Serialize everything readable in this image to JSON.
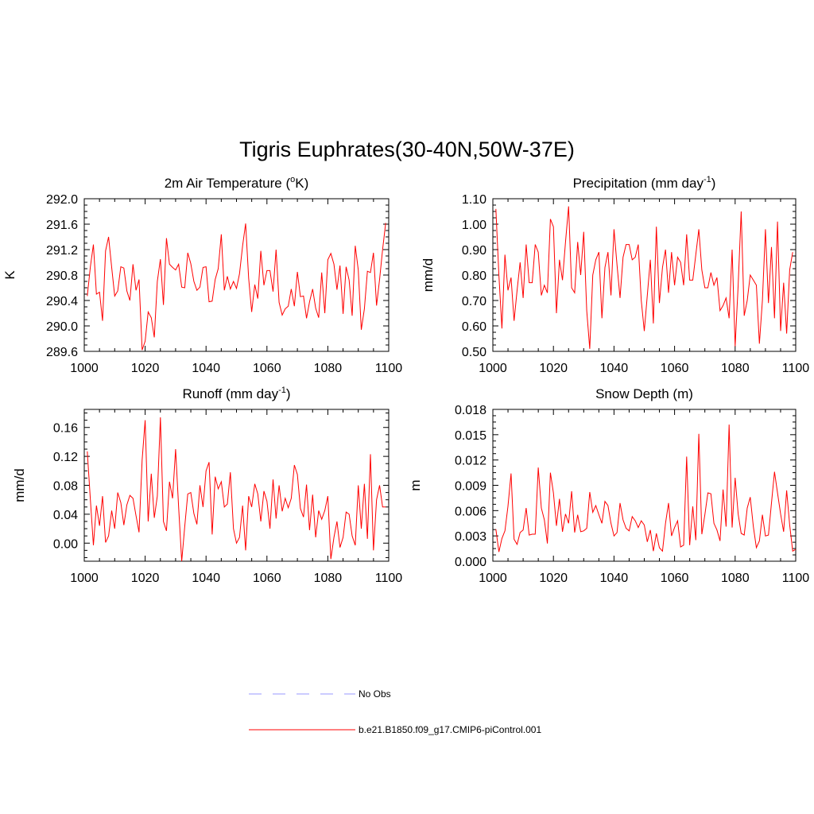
{
  "figure": {
    "title": "Tigris Euphrates(30-40N,50W-37E)"
  },
  "legend": [
    {
      "label": "No Obs",
      "color": "#9999ff",
      "dash": true
    },
    {
      "label": "b.e21.B1850.f09_g17.CMIP6-piControl.001",
      "color": "#ff0000",
      "dash": false
    }
  ],
  "chart_data": [
    {
      "type": "line",
      "title_main": "2m Air Temperature (",
      "title_sup": "o",
      "title_after": "K)",
      "title_sup_position": "before",
      "ylabel": "K",
      "xlim": [
        1000,
        1100
      ],
      "ylim": [
        289.6,
        292.0
      ],
      "xticks": [
        "1000",
        "1020",
        "1040",
        "1060",
        "1080",
        "1100"
      ],
      "yticks": [
        "292.0",
        "291.6",
        "291.2",
        "290.8",
        "290.4",
        "290.0",
        "289.6"
      ],
      "series": [
        {
          "name": "b.e21.B1850.f09_g17.CMIP6-piControl.001",
          "color": "#ff0000",
          "x_start": 1001,
          "values": [
            290.47,
            290.93,
            291.28,
            290.5,
            290.53,
            290.08,
            291.18,
            291.4,
            290.92,
            290.47,
            290.55,
            290.93,
            290.91,
            290.55,
            290.4,
            290.97,
            290.56,
            290.73,
            289.62,
            289.76,
            290.22,
            290.13,
            289.82,
            290.7,
            291.05,
            290.33,
            291.38,
            290.97,
            290.92,
            290.88,
            290.97,
            290.61,
            290.6,
            291.15,
            290.98,
            290.7,
            290.56,
            290.61,
            290.92,
            290.93,
            290.38,
            290.39,
            290.73,
            290.9,
            291.44,
            290.56,
            290.78,
            290.58,
            290.7,
            290.59,
            290.82,
            291.26,
            291.61,
            290.75,
            290.22,
            290.65,
            290.43,
            291.18,
            290.64,
            290.87,
            290.87,
            290.54,
            291.2,
            290.37,
            290.17,
            290.27,
            290.31,
            290.58,
            290.31,
            290.85,
            290.46,
            290.47,
            290.12,
            290.38,
            290.58,
            290.28,
            290.13,
            290.84,
            290.2,
            291.04,
            291.14,
            290.97,
            290.57,
            290.95,
            290.19,
            290.93,
            290.72,
            290.16,
            291.26,
            290.88,
            289.94,
            290.27,
            290.86,
            290.84,
            291.15,
            290.32,
            290.73,
            291.2,
            291.62
          ]
        }
      ]
    },
    {
      "type": "line",
      "title_main": "Precipitation (mm day",
      "title_sup": "-1",
      "title_after": ")",
      "title_sup_position": "after",
      "ylabel": "mm/d",
      "xlim": [
        1000,
        1100
      ],
      "ylim": [
        0.5,
        1.1
      ],
      "xticks": [
        "1000",
        "1020",
        "1040",
        "1060",
        "1080",
        "1100"
      ],
      "yticks": [
        "1.10",
        "1.00",
        "0.90",
        "0.80",
        "0.70",
        "0.60",
        "0.50"
      ],
      "series": [
        {
          "name": "b.e21.B1850.f09_g17.CMIP6-piControl.001",
          "color": "#ff0000",
          "x_start": 1001,
          "values": [
            1.06,
            0.8,
            0.59,
            0.88,
            0.74,
            0.79,
            0.62,
            0.74,
            0.85,
            0.71,
            0.92,
            0.77,
            0.77,
            0.92,
            0.89,
            0.72,
            0.76,
            0.73,
            1.02,
            0.99,
            0.65,
            0.86,
            0.78,
            0.93,
            1.07,
            0.75,
            0.73,
            0.93,
            0.8,
            0.97,
            0.66,
            0.51,
            0.8,
            0.86,
            0.89,
            0.63,
            0.83,
            0.89,
            0.72,
            0.98,
            0.84,
            0.71,
            0.87,
            0.92,
            0.92,
            0.86,
            0.87,
            0.92,
            0.7,
            0.58,
            0.72,
            0.86,
            0.61,
            0.99,
            0.69,
            0.83,
            0.9,
            0.73,
            0.89,
            0.76,
            0.87,
            0.85,
            0.76,
            0.96,
            0.78,
            0.78,
            0.88,
            0.98,
            0.82,
            0.75,
            0.75,
            0.81,
            0.76,
            0.79,
            0.66,
            0.68,
            0.71,
            0.63,
            0.9,
            0.52,
            0.76,
            1.05,
            0.64,
            0.7,
            0.8,
            0.78,
            0.76,
            0.53,
            0.7,
            0.98,
            0.69,
            0.91,
            0.63,
            1.01,
            0.58,
            0.77,
            0.57,
            0.82,
            0.89
          ]
        }
      ]
    },
    {
      "type": "line",
      "title_main": "Runoff (mm day",
      "title_sup": "-1",
      "title_after": ")",
      "title_sup_position": "after",
      "ylabel": "mm/d",
      "xlim": [
        1000,
        1100
      ],
      "ylim": [
        -0.025,
        0.185
      ],
      "xticks": [
        "1000",
        "1020",
        "1040",
        "1060",
        "1080",
        "1100"
      ],
      "yticks": [
        "0.16",
        "0.12",
        "0.08",
        "0.04",
        "0.00"
      ],
      "ytick_values": [
        0.16,
        0.12,
        0.08,
        0.04,
        0.0
      ],
      "series": [
        {
          "name": "b.e21.B1850.f09_g17.CMIP6-piControl.001",
          "color": "#ff0000",
          "x_start": 1001,
          "values": [
            0.127,
            0.06,
            -0.003,
            0.052,
            0.024,
            0.065,
            0.001,
            0.01,
            0.045,
            0.02,
            0.07,
            0.056,
            0.025,
            0.053,
            0.066,
            0.062,
            0.038,
            0.015,
            0.115,
            0.17,
            0.03,
            0.096,
            0.035,
            0.065,
            0.174,
            0.03,
            0.017,
            0.085,
            0.062,
            0.13,
            0.05,
            -0.025,
            0.023,
            0.068,
            0.07,
            0.041,
            0.026,
            0.08,
            0.05,
            0.1,
            0.112,
            0.012,
            0.092,
            0.075,
            0.085,
            0.05,
            0.054,
            0.098,
            0.02,
            0.0,
            0.008,
            0.052,
            -0.01,
            0.065,
            0.05,
            0.082,
            0.068,
            0.03,
            0.072,
            0.058,
            0.02,
            0.088,
            0.034,
            0.08,
            0.044,
            0.062,
            0.049,
            0.062,
            0.108,
            0.095,
            0.048,
            0.036,
            0.081,
            0.018,
            0.067,
            0.008,
            0.045,
            0.033,
            0.045,
            0.065,
            -0.022,
            0.008,
            0.03,
            -0.006,
            0.008,
            0.043,
            0.04,
            0.01,
            -0.003,
            0.08,
            0.02,
            0.082,
            0.006,
            0.123,
            -0.01,
            0.06,
            0.08,
            0.05,
            0.05
          ]
        }
      ]
    },
    {
      "type": "line",
      "title_main": "Snow Depth (m)",
      "title_sup": "",
      "title_after": "",
      "title_sup_position": "none",
      "ylabel": "m",
      "xlim": [
        1000,
        1100
      ],
      "ylim": [
        0.0,
        0.018
      ],
      "xticks": [
        "1000",
        "1020",
        "1040",
        "1060",
        "1080",
        "1100"
      ],
      "yticks": [
        "0.018",
        "0.015",
        "0.012",
        "0.009",
        "0.006",
        "0.003",
        "0.000"
      ],
      "series": [
        {
          "name": "b.e21.B1850.f09_g17.CMIP6-piControl.001",
          "color": "#ff0000",
          "x_start": 1001,
          "values": [
            0.0038,
            0.0011,
            0.0027,
            0.0036,
            0.0065,
            0.0104,
            0.0026,
            0.002,
            0.0034,
            0.0037,
            0.0063,
            0.0031,
            0.0032,
            0.0032,
            0.0111,
            0.0063,
            0.0049,
            0.0021,
            0.0105,
            0.0081,
            0.0042,
            0.0074,
            0.0035,
            0.0056,
            0.0045,
            0.0083,
            0.0034,
            0.0055,
            0.0035,
            0.0036,
            0.0039,
            0.0082,
            0.0058,
            0.0066,
            0.0055,
            0.0045,
            0.0071,
            0.0066,
            0.0045,
            0.003,
            0.0034,
            0.0069,
            0.0049,
            0.0039,
            0.0036,
            0.0053,
            0.0048,
            0.004,
            0.0048,
            0.0043,
            0.0023,
            0.0037,
            0.0012,
            0.0033,
            0.0016,
            0.0012,
            0.0045,
            0.0069,
            0.003,
            0.004,
            0.0048,
            0.0017,
            0.0019,
            0.0124,
            0.0019,
            0.0065,
            0.0025,
            0.0151,
            0.0032,
            0.0055,
            0.0081,
            0.008,
            0.0045,
            0.0037,
            0.0024,
            0.0085,
            0.0041,
            0.0162,
            0.004,
            0.0099,
            0.0056,
            0.0033,
            0.0031,
            0.0063,
            0.0076,
            0.0041,
            0.0016,
            0.0024,
            0.0055,
            0.003,
            0.0031,
            0.0069,
            0.0106,
            0.0081,
            0.0056,
            0.0035,
            0.0084,
            0.0043,
            0.0012,
            0.0014
          ]
        }
      ]
    }
  ]
}
